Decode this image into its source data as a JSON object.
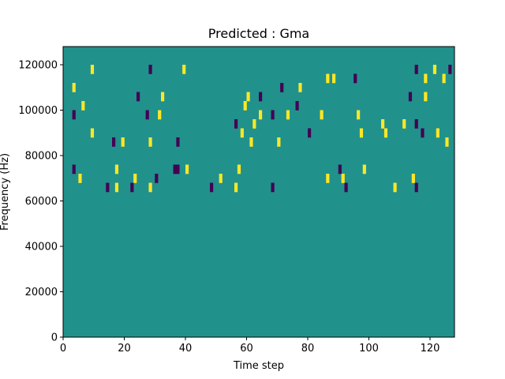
{
  "chart_data": {
    "type": "heatmap",
    "title": "Predicted : Gma",
    "xlabel": "Time step",
    "ylabel": "Frequency (Hz)",
    "xlim": [
      0,
      128
    ],
    "ylim": [
      0,
      128000
    ],
    "xticks": [
      0,
      20,
      40,
      60,
      80,
      100,
      120
    ],
    "yticks": [
      0,
      20000,
      40000,
      60000,
      80000,
      100000,
      120000
    ],
    "ytick_labels": [
      "0",
      "20000",
      "40000",
      "60000",
      "80000",
      "100000",
      "120000"
    ],
    "colormap": "viridis",
    "colors": {
      "background": "#21918c",
      "high": "#fde725",
      "low": "#440154"
    },
    "grid": false,
    "legend": "none",
    "cell_height_hz": 4000,
    "highlights": [
      {
        "t": 9,
        "f": 116000,
        "level": "high"
      },
      {
        "t": 28,
        "f": 116000,
        "level": "low"
      },
      {
        "t": 39,
        "f": 116000,
        "level": "high"
      },
      {
        "t": 86,
        "f": 112000,
        "level": "high"
      },
      {
        "t": 88,
        "f": 112000,
        "level": "high"
      },
      {
        "t": 95,
        "f": 112000,
        "level": "low"
      },
      {
        "t": 115,
        "f": 116000,
        "level": "low"
      },
      {
        "t": 121,
        "f": 116000,
        "level": "high"
      },
      {
        "t": 126,
        "f": 116000,
        "level": "low"
      },
      {
        "t": 118,
        "f": 112000,
        "level": "high"
      },
      {
        "t": 124,
        "f": 112000,
        "level": "high"
      },
      {
        "t": 77,
        "f": 108000,
        "level": "high"
      },
      {
        "t": 71,
        "f": 108000,
        "level": "low"
      },
      {
        "t": 3,
        "f": 108000,
        "level": "high"
      },
      {
        "t": 24,
        "f": 104000,
        "level": "low"
      },
      {
        "t": 32,
        "f": 104000,
        "level": "high"
      },
      {
        "t": 60,
        "f": 104000,
        "level": "high"
      },
      {
        "t": 64,
        "f": 104000,
        "level": "low"
      },
      {
        "t": 113,
        "f": 104000,
        "level": "low"
      },
      {
        "t": 118,
        "f": 104000,
        "level": "high"
      },
      {
        "t": 6,
        "f": 100000,
        "level": "high"
      },
      {
        "t": 59,
        "f": 100000,
        "level": "high"
      },
      {
        "t": 76,
        "f": 100000,
        "level": "low"
      },
      {
        "t": 3,
        "f": 96000,
        "level": "low"
      },
      {
        "t": 27,
        "f": 96000,
        "level": "low"
      },
      {
        "t": 31,
        "f": 96000,
        "level": "high"
      },
      {
        "t": 64,
        "f": 96000,
        "level": "high"
      },
      {
        "t": 68,
        "f": 96000,
        "level": "low"
      },
      {
        "t": 73,
        "f": 96000,
        "level": "high"
      },
      {
        "t": 84,
        "f": 96000,
        "level": "high"
      },
      {
        "t": 96,
        "f": 96000,
        "level": "high"
      },
      {
        "t": 56,
        "f": 92000,
        "level": "low"
      },
      {
        "t": 62,
        "f": 92000,
        "level": "high"
      },
      {
        "t": 104,
        "f": 92000,
        "level": "high"
      },
      {
        "t": 111,
        "f": 92000,
        "level": "high"
      },
      {
        "t": 115,
        "f": 92000,
        "level": "low"
      },
      {
        "t": 9,
        "f": 88000,
        "level": "high"
      },
      {
        "t": 58,
        "f": 88000,
        "level": "high"
      },
      {
        "t": 80,
        "f": 88000,
        "level": "low"
      },
      {
        "t": 97,
        "f": 88000,
        "level": "high"
      },
      {
        "t": 105,
        "f": 88000,
        "level": "high"
      },
      {
        "t": 117,
        "f": 88000,
        "level": "low"
      },
      {
        "t": 122,
        "f": 88000,
        "level": "high"
      },
      {
        "t": 16,
        "f": 84000,
        "level": "low"
      },
      {
        "t": 19,
        "f": 84000,
        "level": "high"
      },
      {
        "t": 28,
        "f": 84000,
        "level": "high"
      },
      {
        "t": 37,
        "f": 84000,
        "level": "low"
      },
      {
        "t": 61,
        "f": 84000,
        "level": "high"
      },
      {
        "t": 70,
        "f": 84000,
        "level": "high"
      },
      {
        "t": 125,
        "f": 84000,
        "level": "high"
      },
      {
        "t": 3,
        "f": 72000,
        "level": "low"
      },
      {
        "t": 17,
        "f": 72000,
        "level": "high"
      },
      {
        "t": 36,
        "f": 72000,
        "level": "low"
      },
      {
        "t": 37,
        "f": 72000,
        "level": "low"
      },
      {
        "t": 40,
        "f": 72000,
        "level": "high"
      },
      {
        "t": 57,
        "f": 72000,
        "level": "high"
      },
      {
        "t": 90,
        "f": 72000,
        "level": "low"
      },
      {
        "t": 98,
        "f": 72000,
        "level": "high"
      },
      {
        "t": 5,
        "f": 68000,
        "level": "high"
      },
      {
        "t": 23,
        "f": 68000,
        "level": "high"
      },
      {
        "t": 30,
        "f": 68000,
        "level": "low"
      },
      {
        "t": 51,
        "f": 68000,
        "level": "high"
      },
      {
        "t": 86,
        "f": 68000,
        "level": "high"
      },
      {
        "t": 91,
        "f": 68000,
        "level": "high"
      },
      {
        "t": 114,
        "f": 68000,
        "level": "high"
      },
      {
        "t": 14,
        "f": 64000,
        "level": "low"
      },
      {
        "t": 17,
        "f": 64000,
        "level": "high"
      },
      {
        "t": 22,
        "f": 64000,
        "level": "low"
      },
      {
        "t": 28,
        "f": 64000,
        "level": "high"
      },
      {
        "t": 48,
        "f": 64000,
        "level": "low"
      },
      {
        "t": 56,
        "f": 64000,
        "level": "high"
      },
      {
        "t": 68,
        "f": 64000,
        "level": "low"
      },
      {
        "t": 92,
        "f": 64000,
        "level": "low"
      },
      {
        "t": 108,
        "f": 64000,
        "level": "high"
      },
      {
        "t": 115,
        "f": 64000,
        "level": "low"
      }
    ]
  }
}
